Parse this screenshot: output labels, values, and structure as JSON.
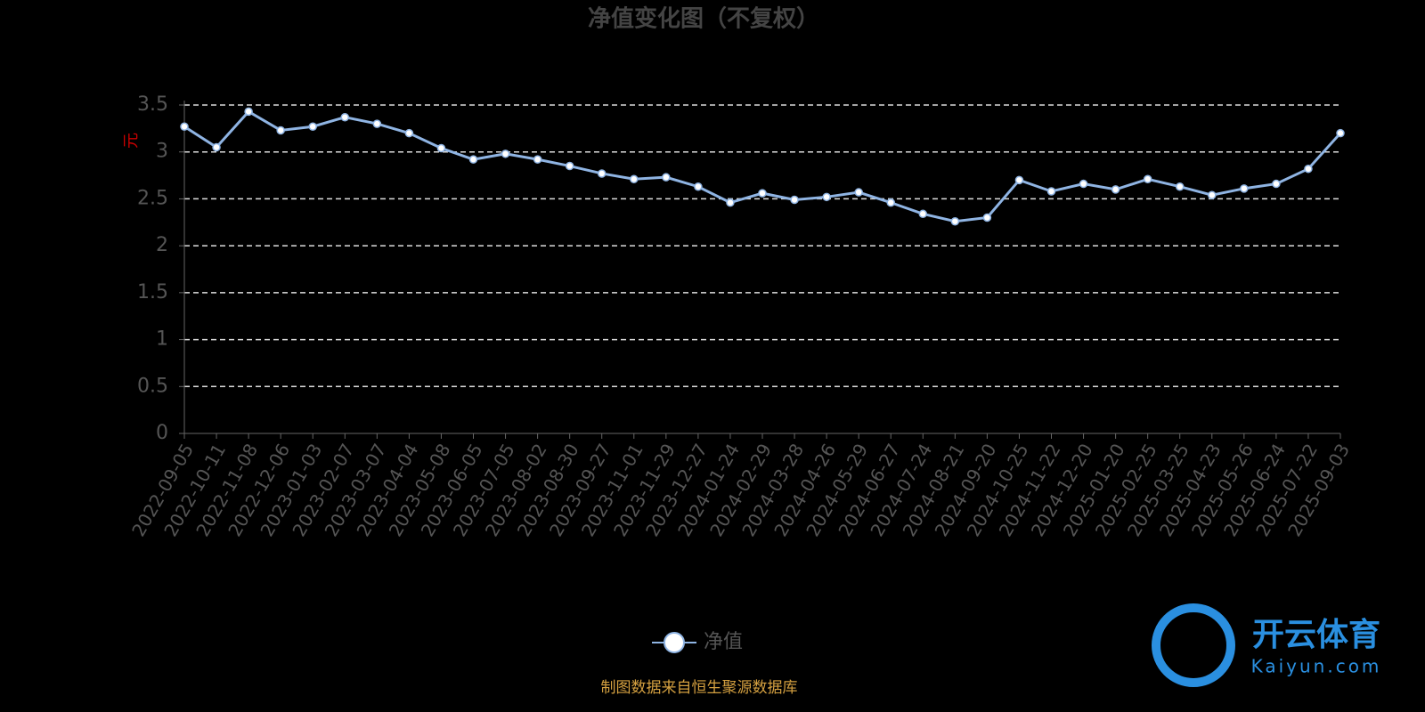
{
  "chart_data": {
    "type": "line",
    "title": "净值变化图（不复权）",
    "y_label": "元",
    "categories": [
      "2022-09-05",
      "2022-10-11",
      "2022-11-08",
      "2022-12-06",
      "2023-01-03",
      "2023-02-07",
      "2023-03-07",
      "2023-04-04",
      "2023-05-08",
      "2023-06-05",
      "2023-07-05",
      "2023-08-02",
      "2023-08-30",
      "2023-09-27",
      "2023-11-01",
      "2023-11-29",
      "2023-12-27",
      "2024-01-24",
      "2024-02-29",
      "2024-03-28",
      "2024-04-26",
      "2024-05-29",
      "2024-06-27",
      "2024-07-24",
      "2024-08-21",
      "2024-09-20",
      "2024-10-25",
      "2024-11-22",
      "2024-12-20",
      "2025-01-20",
      "2025-02-25",
      "2025-03-25",
      "2025-04-23",
      "2025-05-26",
      "2025-06-24",
      "2025-07-22",
      "2025-09-03"
    ],
    "series": [
      {
        "name": "净值",
        "color": "#8fb4e3",
        "values": [
          3.27,
          3.05,
          3.43,
          3.23,
          3.27,
          3.37,
          3.3,
          3.2,
          3.04,
          2.92,
          2.98,
          2.92,
          2.85,
          2.77,
          2.71,
          2.73,
          2.63,
          2.46,
          2.56,
          2.49,
          2.52,
          2.57,
          2.46,
          2.34,
          2.26,
          2.3,
          2.7,
          2.58,
          2.66,
          2.6,
          2.71,
          2.63,
          2.54,
          2.61,
          2.66,
          2.82,
          3.2
        ]
      }
    ],
    "ylim": [
      0,
      3.5
    ],
    "yticks": [
      0,
      0.5,
      1,
      1.5,
      2,
      2.5,
      3,
      3.5
    ],
    "grid": true,
    "footer": "制图数据来自恒生聚源数据库",
    "watermark": {
      "name": "开云体育",
      "site": "Kaiyun.com"
    }
  }
}
